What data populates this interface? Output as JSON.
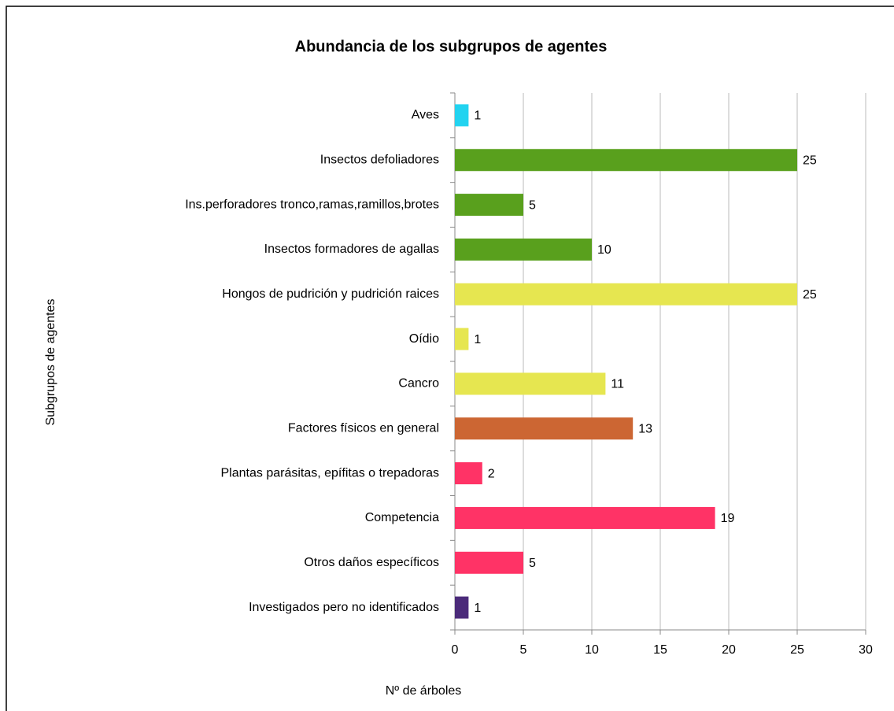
{
  "chart_data": {
    "type": "bar",
    "orientation": "horizontal",
    "title": "Abundancia de los subgrupos de agentes",
    "x_label": "Nº de árboles",
    "y_label": "Subgrupos de agentes",
    "categories": [
      "Aves",
      "Insectos defoliadores",
      "Ins.perforadores tronco,ramas,ramillos,brotes",
      "Insectos formadores de agallas",
      "Hongos de pudrición y pudrición raices",
      "Oídio",
      "Cancro",
      "Factores físicos en general",
      "Plantas parásitas, epífitas o trepadoras",
      "Competencia",
      "Otros daños específicos",
      "Investigados pero no identificados"
    ],
    "values": [
      1,
      25,
      5,
      10,
      25,
      1,
      11,
      13,
      2,
      19,
      5,
      1
    ],
    "colors": [
      "#22d3f0",
      "#59a01d",
      "#59a01d",
      "#59a01d",
      "#e6e650",
      "#e6e650",
      "#e6e650",
      "#cc6633",
      "#ff3366",
      "#ff3366",
      "#ff3366",
      "#4b2a7a"
    ],
    "xlim": [
      0,
      30
    ],
    "xticks": [
      0,
      5,
      10,
      15,
      20,
      25,
      30
    ],
    "grid": true
  }
}
